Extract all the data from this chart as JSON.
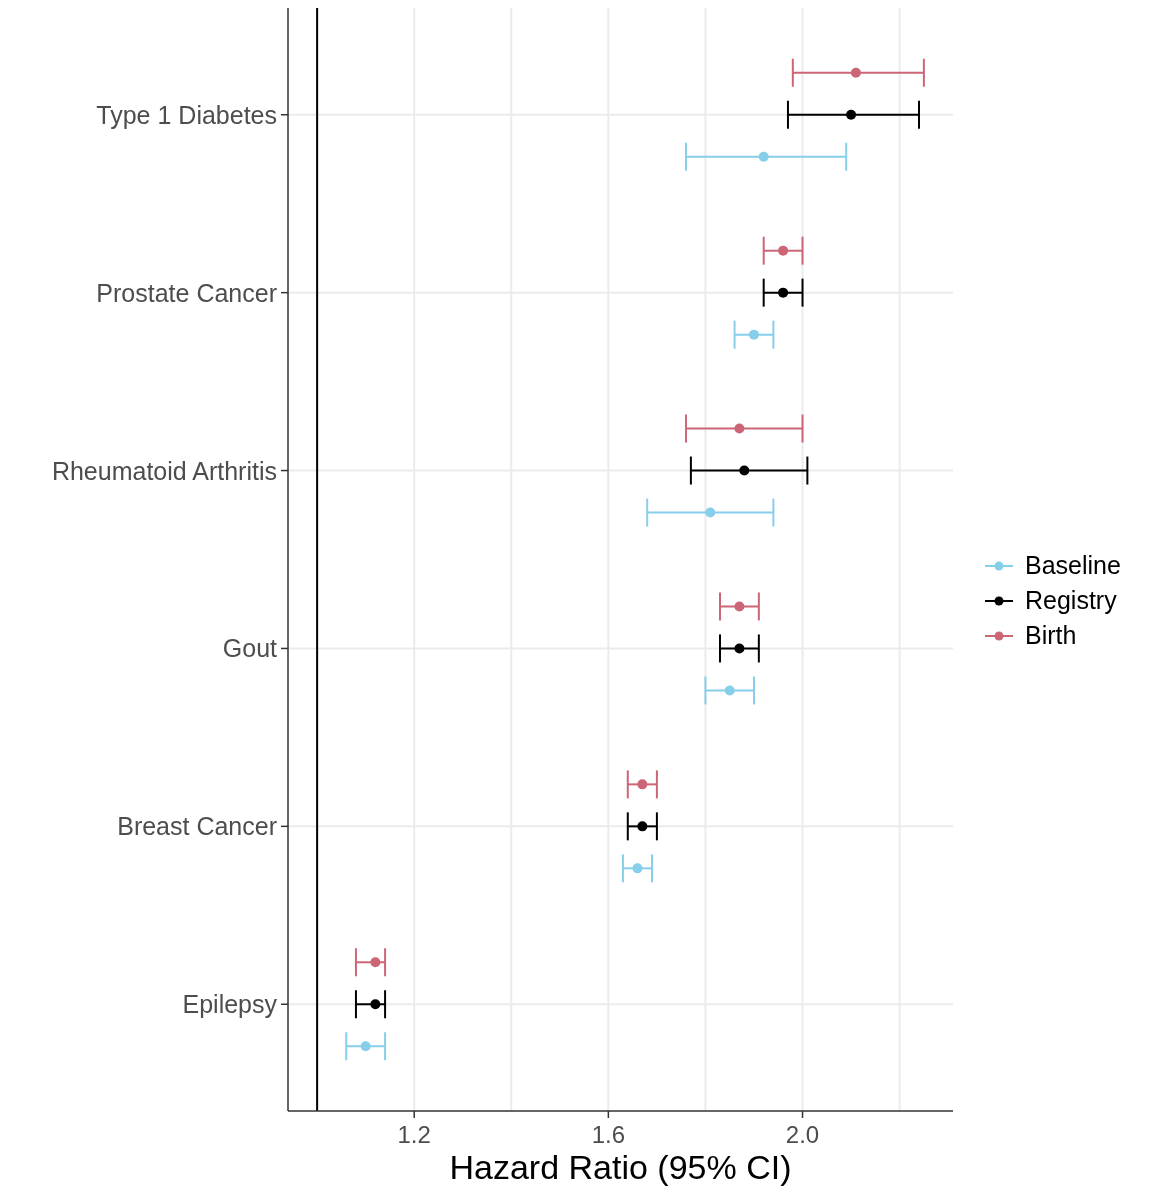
{
  "chart_data": {
    "type": "scatter",
    "orientation": "horizontal",
    "xlabel": "Hazard Ratio (95% CI)",
    "categories": [
      "Type 1 Diabetes",
      "Prostate Cancer",
      "Rheumatoid Arthritis",
      "Gout",
      "Breast Cancer",
      "Epilepsy"
    ],
    "series": [
      {
        "name": "Baseline",
        "color": "#87ceeb",
        "values": [
          1.92,
          1.9,
          1.81,
          1.85,
          1.66,
          1.1
        ],
        "errors": [
          [
            1.76,
            2.09
          ],
          [
            1.86,
            1.94
          ],
          [
            1.68,
            1.94
          ],
          [
            1.8,
            1.9
          ],
          [
            1.63,
            1.69
          ],
          [
            1.06,
            1.14
          ]
        ]
      },
      {
        "name": "Registry",
        "color": "#000000",
        "values": [
          2.1,
          1.96,
          1.88,
          1.87,
          1.67,
          1.12
        ],
        "errors": [
          [
            1.97,
            2.24
          ],
          [
            1.92,
            2.0
          ],
          [
            1.77,
            2.01
          ],
          [
            1.83,
            1.91
          ],
          [
            1.64,
            1.7
          ],
          [
            1.08,
            1.14
          ]
        ]
      },
      {
        "name": "Birth",
        "color": "#cc6677",
        "values": [
          2.11,
          1.96,
          1.87,
          1.87,
          1.67,
          1.12
        ],
        "errors": [
          [
            1.98,
            2.25
          ],
          [
            1.92,
            2.0
          ],
          [
            1.76,
            2.0
          ],
          [
            1.83,
            1.91
          ],
          [
            1.64,
            1.7
          ],
          [
            1.08,
            1.14
          ]
        ]
      }
    ],
    "xlim": [
      0.94,
      2.31
    ],
    "xticks": [
      {
        "value": 1,
        "label": null
      },
      {
        "value": 1.2,
        "label": "1.2"
      },
      {
        "value": 1.4,
        "label": null
      },
      {
        "value": 1.6,
        "label": "1.6"
      },
      {
        "value": 1.8,
        "label": null
      },
      {
        "value": 2,
        "label": "2.0"
      },
      {
        "value": 2.2,
        "label": null
      }
    ],
    "ref_lines": [
      {
        "axis": "x",
        "value": 1,
        "color": "#000000"
      }
    ],
    "grid": true,
    "legend": "right",
    "marker": "circle"
  }
}
